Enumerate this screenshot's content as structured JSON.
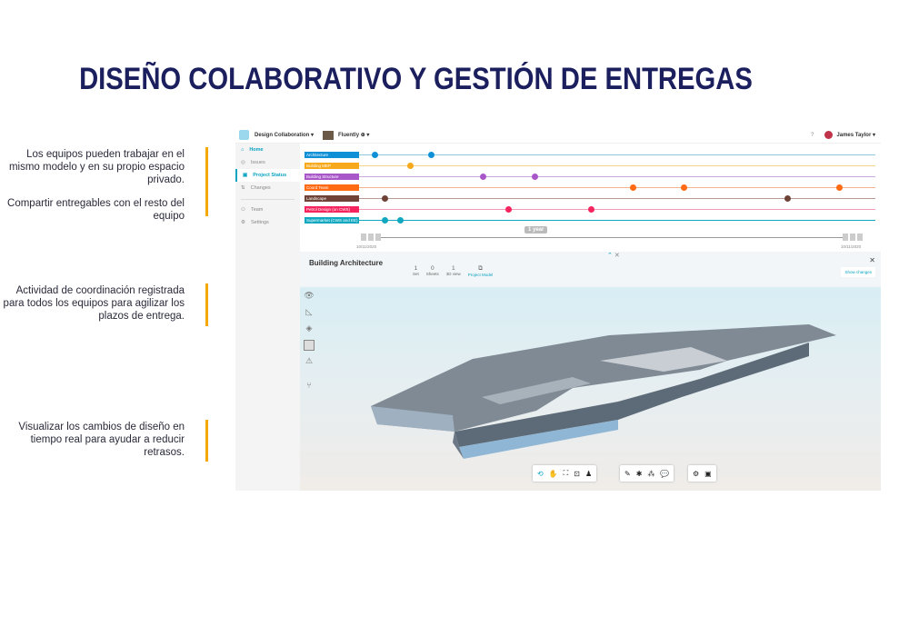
{
  "slide": {
    "title": "DISEÑO COLABORATIVO Y GESTIÓN DE ENTREGAS",
    "notes": [
      "Los equipos pueden trabajar en el mismo modelo y en su propio espacio privado.",
      "Compartir entregables con el resto del equipo",
      "Actividad de coordinación registrada para todos los equipos para agilizar los plazos de entrega.",
      "Visualizar los cambios de diseño en tiempo real para ayudar a reducir retrasos."
    ],
    "accent": "#f5a800",
    "title_color": "#1b1f5e"
  },
  "app": {
    "header": {
      "project": "Design Collaboration",
      "hub": "Fluently",
      "user": "James Taylor"
    },
    "sidebar": [
      {
        "label": "Home",
        "icon": "home-icon"
      },
      {
        "label": "Issues",
        "icon": "check-circle-icon"
      },
      {
        "label": "Project Status",
        "icon": "status-icon"
      },
      {
        "label": "Changes",
        "icon": "changes-icon"
      },
      {
        "label": "Team",
        "icon": "team-icon"
      },
      {
        "label": "Settings",
        "icon": "gear-icon"
      }
    ],
    "timeline": {
      "rows": [
        {
          "label": "Architecture",
          "color": "#0f8fd6",
          "line": "#8ec9dc",
          "events": [
            0.03,
            0.14
          ]
        },
        {
          "label": "Building MEP",
          "color": "#f7a81b",
          "line": "#f4d38a",
          "events": [
            0.1
          ]
        },
        {
          "label": "Building Structure",
          "color": "#a956c9",
          "line": "#c9a9dc",
          "events": [
            0.24,
            0.34
          ]
        },
        {
          "label": "Coord Team",
          "color": "#ff6a13",
          "line": "#f2b48e",
          "events": [
            0.53,
            0.63,
            0.93
          ]
        },
        {
          "label": "Landscape",
          "color": "#6e4236",
          "line": "#b89b95",
          "events": [
            0.05,
            0.83
          ]
        },
        {
          "label": "Petrol Design (on CWS)",
          "color": "#f5245e",
          "line": "#f39ab4",
          "events": [
            0.29,
            0.45
          ]
        },
        {
          "label": "Supermarket (CWS and EE)",
          "color": "#10a8c0",
          "line": "#10a8c0",
          "events": [
            0.05,
            0.08
          ]
        }
      ],
      "range_label": "1 year",
      "start": "10/11/2020",
      "end": "10/11/2020"
    },
    "viewer": {
      "title": "Building Architecture",
      "stats": [
        {
          "value": "1",
          "label": "Set"
        },
        {
          "value": "0",
          "label": "Sheets"
        },
        {
          "value": "1",
          "label": "3D view"
        }
      ],
      "model": "Project Model",
      "show_changes": "Show changes"
    }
  }
}
